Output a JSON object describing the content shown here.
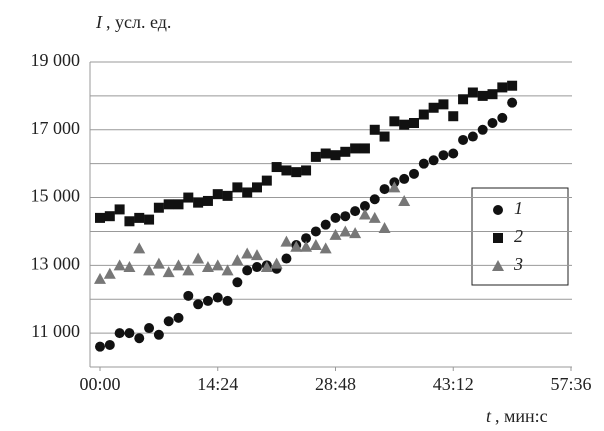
{
  "chart_data": {
    "type": "scatter",
    "y_label": {
      "symbol": "I",
      "unit": ", усл. ед."
    },
    "x_label": {
      "symbol": "t",
      "unit": ", мин:с"
    },
    "xlim": [
      0,
      3456
    ],
    "xticks": [
      {
        "value": 0,
        "label": "00:00"
      },
      {
        "value": 864,
        "label": "14:24"
      },
      {
        "value": 1728,
        "label": "28:48"
      },
      {
        "value": 2592,
        "label": "43:12"
      },
      {
        "value": 3456,
        "label": "57:36"
      }
    ],
    "ylim": [
      10000,
      19000
    ],
    "yticks": [
      {
        "value": 11000,
        "label": "11 000"
      },
      {
        "value": 13000,
        "label": "13 000"
      },
      {
        "value": 15000,
        "label": "15 000"
      },
      {
        "value": 17000,
        "label": "17 000"
      },
      {
        "value": 19000,
        "label": "19 000"
      }
    ],
    "minor_yticks": [
      12000,
      14000,
      16000,
      18000
    ],
    "grid": true,
    "legend": "right",
    "x": [
      0,
      72,
      144,
      216,
      288,
      360,
      432,
      504,
      576,
      648,
      720,
      792,
      864,
      936,
      1008,
      1080,
      1152,
      1224,
      1296,
      1368,
      1440,
      1512,
      1584,
      1656,
      1728,
      1800,
      1872,
      1944,
      2016,
      2088,
      2160,
      2232,
      2304,
      2376,
      2448,
      2520,
      2592,
      2664,
      2736,
      2808,
      2880,
      2952,
      3024
    ],
    "series": [
      {
        "name": "1",
        "marker": "circle",
        "color": "#111111",
        "values": [
          10600,
          10650,
          11000,
          11000,
          10850,
          11150,
          10950,
          11350,
          11450,
          12100,
          11850,
          11950,
          12050,
          11950,
          12500,
          12850,
          12950,
          13000,
          12900,
          13200,
          13600,
          13800,
          14000,
          14200,
          14400,
          14450,
          14600,
          14750,
          14950,
          15250,
          15450,
          15550,
          15700,
          16000,
          16100,
          16250,
          16300,
          16700,
          16800,
          17000,
          17200,
          17350,
          17800
        ]
      },
      {
        "name": "2",
        "marker": "square",
        "color": "#111111",
        "values": [
          14400,
          14450,
          14650,
          14300,
          14400,
          14350,
          14700,
          14800,
          14800,
          15000,
          14850,
          14900,
          15100,
          15050,
          15300,
          15150,
          15300,
          15500,
          15900,
          15800,
          15750,
          15800,
          16200,
          16300,
          16250,
          16350,
          16450,
          16450,
          17000,
          16800,
          17250,
          17150,
          17200,
          17450,
          17650,
          17750,
          17400,
          17900,
          18100,
          18000,
          18050,
          18250,
          18300
        ]
      },
      {
        "name": "3",
        "marker": "triangle",
        "color": "#777777",
        "values": [
          12600,
          12750,
          13000,
          12950,
          13500,
          12850,
          13050,
          12800,
          13000,
          12850,
          13200,
          12950,
          13000,
          12850,
          13150,
          13350,
          13300,
          12950,
          13050,
          13700,
          13550,
          13550,
          13600,
          13500,
          13900,
          14000,
          13950,
          14500,
          14400,
          14100,
          15300,
          14900,
          null,
          null,
          null,
          null,
          null,
          null,
          null,
          null,
          null,
          null,
          null
        ]
      }
    ]
  }
}
